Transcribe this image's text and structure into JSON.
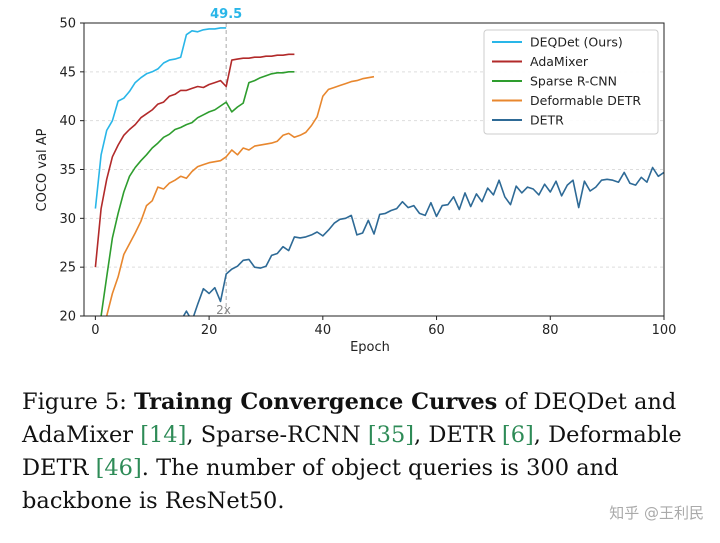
{
  "chart_data": {
    "type": "line",
    "xlabel": "Epoch",
    "ylabel": "COCO val AP",
    "xlim": [
      -2,
      100
    ],
    "ylim": [
      20,
      50
    ],
    "xticks": [
      0,
      20,
      40,
      60,
      80,
      100
    ],
    "yticks": [
      20,
      25,
      30,
      35,
      40,
      45,
      50
    ],
    "grid": "y",
    "legend_position": "top-right",
    "vline": {
      "x": 23,
      "label": "2x"
    },
    "annotation": {
      "text": "49.5",
      "x": 23,
      "y": 49.5,
      "color": "#29b6e8"
    },
    "series": [
      {
        "name": "DEQDet (Ours)",
        "color": "#29b6e8",
        "x": [
          0,
          1,
          2,
          3,
          4,
          5,
          6,
          7,
          8,
          9,
          10,
          11,
          12,
          13,
          14,
          15,
          16,
          17,
          18,
          19,
          20,
          21,
          22,
          23
        ],
        "y": [
          31,
          36.5,
          39,
          40,
          42,
          42.3,
          43,
          43.9,
          44.4,
          44.8,
          45,
          45.3,
          45.9,
          46.2,
          46.3,
          46.5,
          48.8,
          49.2,
          49.1,
          49.3,
          49.4,
          49.4,
          49.5,
          49.5
        ]
      },
      {
        "name": "AdaMixer",
        "color": "#b22a2a",
        "x": [
          0,
          1,
          2,
          3,
          4,
          5,
          6,
          7,
          8,
          9,
          10,
          11,
          12,
          13,
          14,
          15,
          16,
          17,
          18,
          19,
          20,
          21,
          22,
          23,
          24,
          25,
          26,
          27,
          28,
          29,
          30,
          31,
          32,
          33,
          34,
          35
        ],
        "y": [
          25,
          31,
          34,
          36.3,
          37.5,
          38.5,
          39.1,
          39.6,
          40.3,
          40.7,
          41.1,
          41.7,
          41.9,
          42.5,
          42.7,
          43.1,
          43.1,
          43.3,
          43.5,
          43.4,
          43.7,
          43.9,
          44.1,
          43.5,
          46.2,
          46.3,
          46.4,
          46.4,
          46.5,
          46.5,
          46.6,
          46.6,
          46.7,
          46.7,
          46.8,
          46.8
        ]
      },
      {
        "name": "Sparse R-CNN",
        "color": "#2e9d2e",
        "x": [
          1,
          2,
          3,
          4,
          5,
          6,
          7,
          8,
          9,
          10,
          11,
          12,
          13,
          14,
          15,
          16,
          17,
          18,
          19,
          20,
          21,
          22,
          23,
          24,
          25,
          26,
          27,
          28,
          29,
          30,
          31,
          32,
          33,
          34,
          35
        ],
        "y": [
          20,
          24,
          28,
          30.5,
          32.7,
          34.3,
          35.2,
          35.9,
          36.5,
          37.2,
          37.7,
          38.3,
          38.6,
          39.1,
          39.3,
          39.6,
          39.8,
          40.3,
          40.6,
          40.9,
          41.1,
          41.5,
          41.9,
          40.9,
          41.4,
          41.8,
          43.9,
          44.1,
          44.4,
          44.6,
          44.8,
          44.9,
          44.9,
          45,
          45
        ]
      },
      {
        "name": "Deformable DETR",
        "color": "#e8872e",
        "x": [
          2,
          3,
          4,
          5,
          6,
          7,
          8,
          9,
          10,
          11,
          12,
          13,
          14,
          15,
          16,
          17,
          18,
          19,
          20,
          21,
          22,
          23,
          24,
          25,
          26,
          27,
          28,
          29,
          30,
          31,
          32,
          33,
          34,
          35,
          36,
          37,
          38,
          39,
          40,
          41,
          42,
          43,
          44,
          45,
          46,
          47,
          48,
          49
        ],
        "y": [
          20,
          22.3,
          24,
          26.3,
          27.4,
          28.5,
          29.7,
          31.3,
          31.8,
          33.2,
          33,
          33.6,
          33.9,
          34.3,
          34.1,
          34.8,
          35.3,
          35.5,
          35.7,
          35.8,
          35.9,
          36.3,
          37,
          36.5,
          37.2,
          37,
          37.4,
          37.5,
          37.6,
          37.7,
          37.9,
          38.5,
          38.7,
          38.3,
          38.5,
          38.8,
          39.5,
          40.4,
          42.5,
          43.2,
          43.4,
          43.6,
          43.8,
          44,
          44.1,
          44.3,
          44.4,
          44.5
        ]
      },
      {
        "name": "DETR",
        "color": "#2e6a96",
        "x": [
          14,
          15,
          16,
          17,
          18,
          19,
          20,
          21,
          22,
          23,
          24,
          25,
          26,
          27,
          28,
          29,
          30,
          31,
          32,
          33,
          34,
          35,
          36,
          37,
          38,
          39,
          40,
          41,
          42,
          43,
          44,
          45,
          46,
          47,
          48,
          49,
          50,
          51,
          52,
          53,
          54,
          55,
          56,
          57,
          58,
          59,
          60,
          61,
          62,
          63,
          64,
          65,
          66,
          67,
          68,
          69,
          70,
          71,
          72,
          73,
          74,
          75,
          76,
          77,
          78,
          79,
          80,
          81,
          82,
          83,
          84,
          85,
          86,
          87,
          88,
          89,
          90,
          91,
          92,
          93,
          94,
          95,
          96,
          97,
          98,
          99,
          100
        ],
        "y": [
          19,
          19.5,
          20.5,
          19.5,
          21.2,
          22.8,
          22.3,
          22.9,
          21.5,
          24.3,
          24.8,
          25.1,
          25.7,
          25.8,
          25.0,
          24.9,
          25.1,
          26.2,
          26.4,
          27.1,
          26.7,
          28.1,
          28.0,
          28.1,
          28.3,
          28.6,
          28.2,
          28.8,
          29.5,
          29.9,
          30.0,
          30.3,
          28.3,
          28.5,
          29.8,
          28.4,
          30.4,
          30.5,
          30.8,
          31.0,
          31.7,
          31.1,
          31.3,
          30.5,
          30.3,
          31.6,
          30.2,
          31.3,
          31.4,
          32.2,
          30.9,
          32.6,
          31.2,
          32.5,
          31.7,
          33.1,
          32.4,
          33.9,
          32.2,
          31.4,
          33.3,
          32.6,
          33.2,
          33.0,
          32.4,
          33.5,
          32.7,
          33.8,
          32.3,
          33.4,
          33.9,
          31.1,
          33.8,
          32.8,
          33.2,
          33.9,
          34.0,
          33.9,
          33.7,
          34.7,
          33.6,
          33.4,
          34.2,
          33.7,
          35.2,
          34.3,
          34.7
        ]
      }
    ]
  },
  "caption": {
    "prefix": "Figure 5: ",
    "bold": "Trainng Convergence Curves",
    "t1": " of DEQDet and AdaMixer ",
    "r1": "[14]",
    "t2": ", Sparse-RCNN ",
    "r2": "[35]",
    "t3": ", DETR ",
    "r3": "[6]",
    "t4": ", Deformable DETR ",
    "r4": "[46]",
    "t5": ". The number of object queries is 300 and backbone is ResNet50."
  },
  "watermark": "知乎 @王利民"
}
